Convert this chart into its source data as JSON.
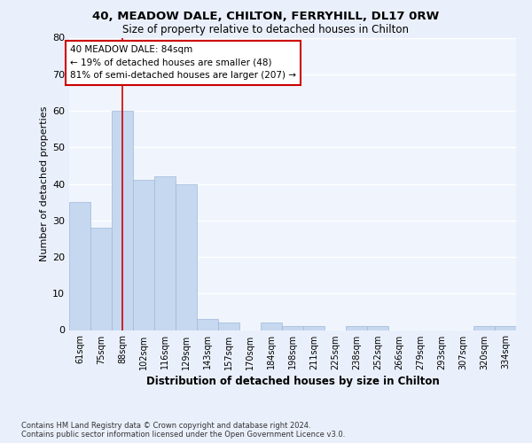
{
  "title1": "40, MEADOW DALE, CHILTON, FERRYHILL, DL17 0RW",
  "title2": "Size of property relative to detached houses in Chilton",
  "xlabel": "Distribution of detached houses by size in Chilton",
  "ylabel": "Number of detached properties",
  "categories": [
    "61sqm",
    "75sqm",
    "88sqm",
    "102sqm",
    "116sqm",
    "129sqm",
    "143sqm",
    "157sqm",
    "170sqm",
    "184sqm",
    "198sqm",
    "211sqm",
    "225sqm",
    "238sqm",
    "252sqm",
    "266sqm",
    "279sqm",
    "293sqm",
    "307sqm",
    "320sqm",
    "334sqm"
  ],
  "values": [
    35,
    28,
    60,
    41,
    42,
    40,
    3,
    2,
    0,
    2,
    1,
    1,
    0,
    1,
    1,
    0,
    0,
    0,
    0,
    1,
    1
  ],
  "bar_color": "#c5d8f0",
  "bar_edge_color": "#a0b8d8",
  "marker_index": 2,
  "marker_color": "#cc0000",
  "annotation_text": "40 MEADOW DALE: 84sqm\n← 19% of detached houses are smaller (48)\n81% of semi-detached houses are larger (207) →",
  "annotation_box_color": "#ffffff",
  "annotation_box_edge": "#cc0000",
  "ylim": [
    0,
    80
  ],
  "yticks": [
    0,
    10,
    20,
    30,
    40,
    50,
    60,
    70,
    80
  ],
  "footer": "Contains HM Land Registry data © Crown copyright and database right 2024.\nContains public sector information licensed under the Open Government Licence v3.0.",
  "bg_color": "#eaf0fb",
  "plot_bg_color": "#f0f5fd"
}
